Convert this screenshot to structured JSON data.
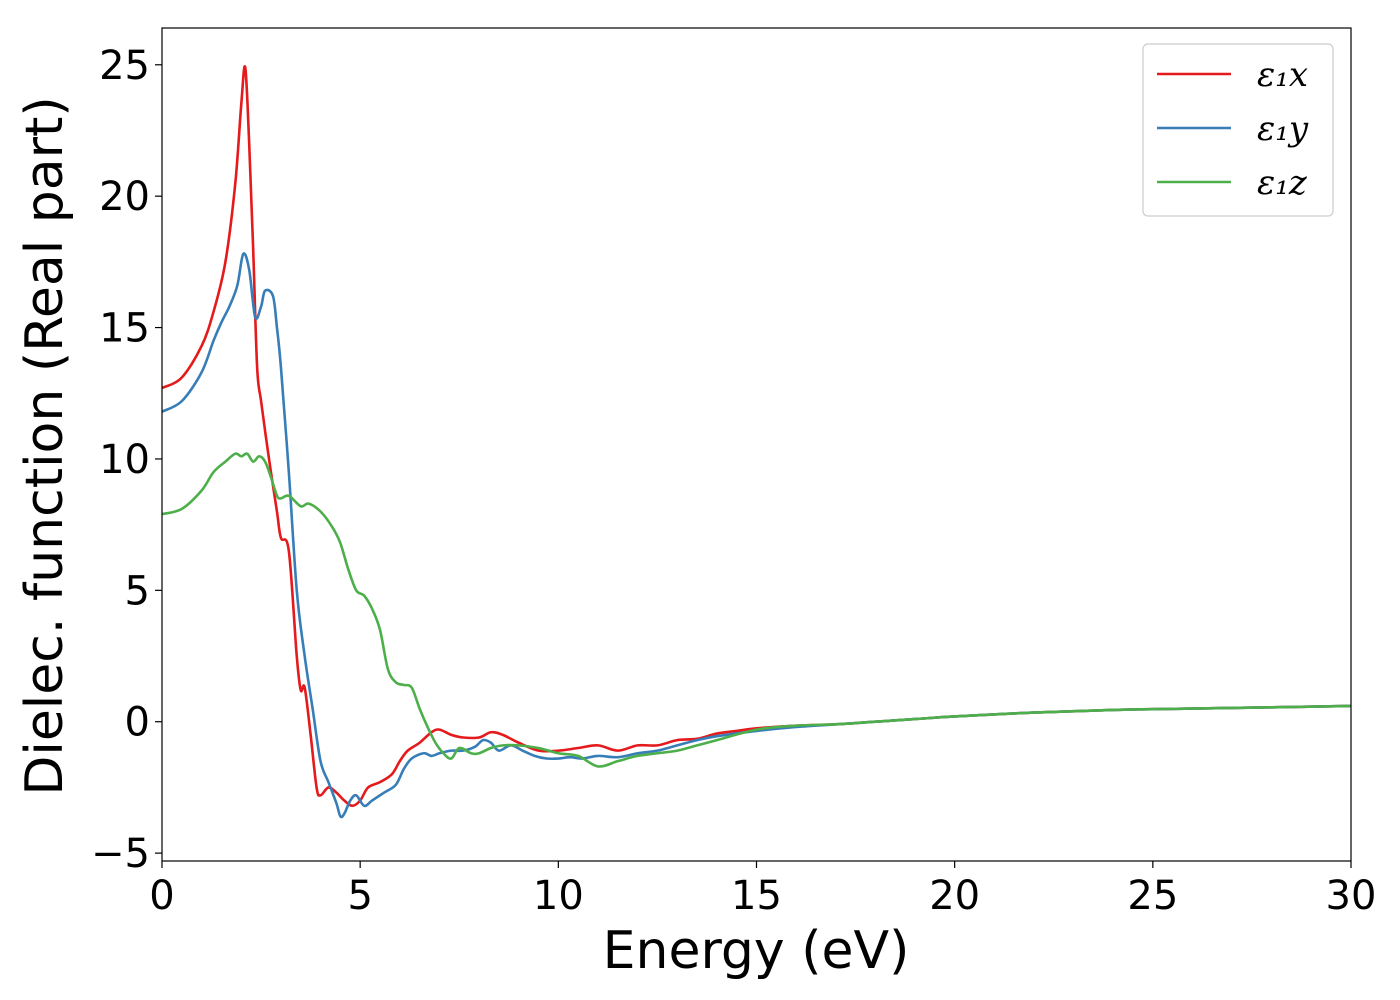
{
  "chart_data": {
    "type": "line",
    "title": "",
    "xlabel": "Energy (eV)",
    "ylabel": "Dielec. function (Real part)",
    "xlim": [
      0,
      30
    ],
    "ylim": [
      -5.3,
      26.4
    ],
    "x_ticks": [
      0,
      5,
      10,
      15,
      20,
      25,
      30
    ],
    "x_tick_labels": [
      "0",
      "5",
      "10",
      "15",
      "20",
      "25",
      "30"
    ],
    "y_ticks": [
      -5,
      0,
      5,
      10,
      15,
      20,
      25
    ],
    "y_tick_labels": [
      "−5",
      "0",
      "5",
      "10",
      "15",
      "20",
      "25"
    ],
    "grid": false,
    "legend_position": "top-right",
    "series": [
      {
        "name": "ε₁x",
        "color": "#e41a1c",
        "x": [
          0,
          0.5,
          1.0,
          1.3,
          1.6,
          1.85,
          2.0,
          2.1,
          2.2,
          2.3,
          2.4,
          2.5,
          2.7,
          2.9,
          3.0,
          3.2,
          3.4,
          3.5,
          3.6,
          3.75,
          3.9,
          4.0,
          4.2,
          4.4,
          4.6,
          4.8,
          5.0,
          5.2,
          5.5,
          5.8,
          6.0,
          6.2,
          6.5,
          6.8,
          7.0,
          7.3,
          7.6,
          8.0,
          8.3,
          8.6,
          9.0,
          9.5,
          10.0,
          10.5,
          11.0,
          11.5,
          12.0,
          12.5,
          13.0,
          13.5,
          14.0,
          14.5,
          15.0,
          16.0,
          17.0,
          18.0,
          19.0,
          20.0,
          22.0,
          24.0,
          26.0,
          28.0,
          30.0
        ],
        "values": [
          12.7,
          13.1,
          14.3,
          15.6,
          17.5,
          20.5,
          23.5,
          24.9,
          22.0,
          18.0,
          13.5,
          12.2,
          10.0,
          8.0,
          7.0,
          6.5,
          2.5,
          1.2,
          1.3,
          -0.5,
          -2.5,
          -2.8,
          -2.5,
          -2.7,
          -3.0,
          -3.2,
          -3.0,
          -2.5,
          -2.3,
          -2.0,
          -1.5,
          -1.1,
          -0.8,
          -0.4,
          -0.3,
          -0.5,
          -0.6,
          -0.6,
          -0.4,
          -0.5,
          -0.8,
          -1.1,
          -1.1,
          -1.0,
          -0.9,
          -1.1,
          -0.9,
          -0.9,
          -0.7,
          -0.65,
          -0.45,
          -0.35,
          -0.25,
          -0.15,
          -0.1,
          0.0,
          0.1,
          0.2,
          0.35,
          0.45,
          0.5,
          0.55,
          0.6
        ]
      },
      {
        "name": "ε₁y",
        "color": "#377eb8",
        "x": [
          0,
          0.5,
          1.0,
          1.3,
          1.5,
          1.7,
          1.9,
          2.05,
          2.2,
          2.35,
          2.5,
          2.6,
          2.8,
          2.9,
          3.0,
          3.2,
          3.4,
          3.6,
          3.8,
          4.0,
          4.2,
          4.4,
          4.5,
          4.6,
          4.75,
          4.9,
          5.1,
          5.3,
          5.6,
          5.9,
          6.1,
          6.3,
          6.6,
          6.8,
          7.0,
          7.3,
          7.6,
          7.9,
          8.1,
          8.3,
          8.5,
          8.8,
          9.1,
          9.4,
          9.7,
          10.0,
          10.3,
          10.6,
          11.0,
          11.5,
          12.0,
          12.5,
          13.0,
          13.5,
          14.0,
          15.0,
          16.0,
          17.0,
          18.0,
          19.0,
          20.0,
          22.0,
          24.0,
          26.0,
          28.0,
          30.0
        ],
        "values": [
          11.8,
          12.2,
          13.3,
          14.5,
          15.2,
          15.8,
          16.6,
          17.8,
          17.2,
          15.4,
          15.8,
          16.4,
          16.2,
          15.0,
          13.5,
          9.5,
          5.0,
          2.5,
          0.5,
          -1.5,
          -2.3,
          -3.1,
          -3.6,
          -3.5,
          -3.0,
          -2.8,
          -3.2,
          -3.0,
          -2.7,
          -2.4,
          -1.8,
          -1.4,
          -1.2,
          -1.3,
          -1.2,
          -1.1,
          -1.1,
          -0.95,
          -0.7,
          -0.8,
          -1.1,
          -0.9,
          -1.1,
          -1.3,
          -1.4,
          -1.4,
          -1.35,
          -1.4,
          -1.3,
          -1.35,
          -1.2,
          -1.1,
          -0.9,
          -0.7,
          -0.55,
          -0.35,
          -0.2,
          -0.1,
          0.0,
          0.1,
          0.2,
          0.35,
          0.45,
          0.5,
          0.55,
          0.6
        ]
      },
      {
        "name": "ε₁z",
        "color": "#4daf4a",
        "x": [
          0,
          0.5,
          1.0,
          1.3,
          1.6,
          1.85,
          2.0,
          2.15,
          2.3,
          2.45,
          2.6,
          2.75,
          2.9,
          3.0,
          3.2,
          3.5,
          3.7,
          4.0,
          4.3,
          4.5,
          4.7,
          4.9,
          5.1,
          5.3,
          5.5,
          5.7,
          5.9,
          6.1,
          6.3,
          6.5,
          6.7,
          6.9,
          7.1,
          7.3,
          7.5,
          7.8,
          8.0,
          8.3,
          8.6,
          9.0,
          9.5,
          10.0,
          10.5,
          11.0,
          11.5,
          12.0,
          12.5,
          13.0,
          13.5,
          14.0,
          15.0,
          16.0,
          17.0,
          18.0,
          19.0,
          20.0,
          22.0,
          24.0,
          26.0,
          28.0,
          30.0
        ],
        "values": [
          7.9,
          8.1,
          8.8,
          9.5,
          9.9,
          10.2,
          10.1,
          10.2,
          9.9,
          10.1,
          9.9,
          9.3,
          8.6,
          8.5,
          8.6,
          8.2,
          8.3,
          8.0,
          7.4,
          6.8,
          5.8,
          5.0,
          4.8,
          4.3,
          3.5,
          2.0,
          1.5,
          1.4,
          1.3,
          0.5,
          -0.2,
          -0.8,
          -1.2,
          -1.4,
          -1.0,
          -1.2,
          -1.2,
          -1.0,
          -0.9,
          -0.9,
          -1.0,
          -1.2,
          -1.3,
          -1.7,
          -1.5,
          -1.3,
          -1.2,
          -1.1,
          -0.9,
          -0.7,
          -0.3,
          -0.15,
          -0.1,
          0.0,
          0.1,
          0.2,
          0.35,
          0.45,
          0.5,
          0.55,
          0.6
        ]
      }
    ]
  }
}
